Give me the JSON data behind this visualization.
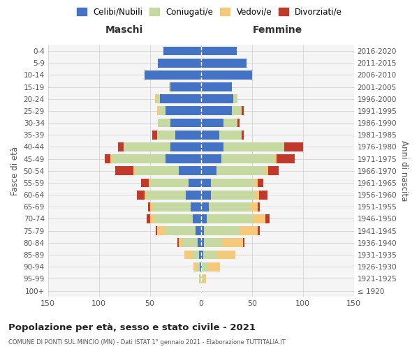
{
  "age_groups": [
    "100+",
    "95-99",
    "90-94",
    "85-89",
    "80-84",
    "75-79",
    "70-74",
    "65-69",
    "60-64",
    "55-59",
    "50-54",
    "45-49",
    "40-44",
    "35-39",
    "30-34",
    "25-29",
    "20-24",
    "15-19",
    "10-14",
    "5-9",
    "0-4"
  ],
  "birth_years": [
    "≤ 1920",
    "1921-1925",
    "1926-1930",
    "1931-1935",
    "1936-1940",
    "1941-1945",
    "1946-1950",
    "1951-1955",
    "1956-1960",
    "1961-1965",
    "1966-1970",
    "1971-1975",
    "1976-1980",
    "1981-1985",
    "1986-1990",
    "1991-1995",
    "1996-2000",
    "2001-2005",
    "2006-2010",
    "2011-2015",
    "2016-2020"
  ],
  "colors": {
    "celibi": "#4472c4",
    "coniugati": "#c5d9a0",
    "vedovi": "#f5c97a",
    "divorziati": "#c0392b"
  },
  "maschi": {
    "celibi": [
      0,
      0,
      1,
      2,
      3,
      5,
      8,
      10,
      15,
      12,
      22,
      35,
      30,
      25,
      30,
      35,
      40,
      30,
      55,
      42,
      37
    ],
    "coniugati": [
      0,
      1,
      3,
      6,
      15,
      30,
      38,
      37,
      38,
      38,
      42,
      52,
      46,
      18,
      12,
      6,
      3,
      1,
      0,
      0,
      0
    ],
    "vedovi": [
      0,
      1,
      3,
      8,
      4,
      8,
      4,
      3,
      2,
      1,
      2,
      2,
      0,
      0,
      0,
      2,
      2,
      0,
      0,
      0,
      0
    ],
    "divorziati": [
      0,
      0,
      0,
      0,
      1,
      1,
      3,
      2,
      8,
      8,
      18,
      5,
      5,
      5,
      0,
      0,
      0,
      0,
      0,
      0,
      0
    ]
  },
  "femmine": {
    "celibi": [
      0,
      0,
      1,
      2,
      3,
      3,
      6,
      8,
      10,
      10,
      15,
      20,
      22,
      18,
      22,
      30,
      32,
      30,
      50,
      45,
      35
    ],
    "coniugati": [
      0,
      2,
      6,
      14,
      18,
      35,
      45,
      40,
      42,
      42,
      48,
      52,
      60,
      22,
      14,
      10,
      4,
      0,
      0,
      0,
      0
    ],
    "vedovi": [
      1,
      3,
      12,
      18,
      20,
      18,
      12,
      8,
      5,
      4,
      3,
      2,
      0,
      0,
      0,
      0,
      0,
      0,
      0,
      0,
      0
    ],
    "divorziati": [
      0,
      0,
      0,
      0,
      2,
      2,
      4,
      2,
      8,
      5,
      10,
      18,
      18,
      2,
      2,
      2,
      0,
      0,
      0,
      0,
      0
    ]
  },
  "title": "Popolazione per età, sesso e stato civile - 2021",
  "subtitle": "COMUNE DI PONTI SUL MINCIO (MN) - Dati ISTAT 1° gennaio 2021 - Elaborazione TUTTITALIA.IT",
  "xlabel_left": "Maschi",
  "xlabel_right": "Femmine",
  "ylabel_left": "Fasce di età",
  "ylabel_right": "Anni di nascita",
  "xlim": 150,
  "legend_labels": [
    "Celibi/Nubili",
    "Coniugati/e",
    "Vedovi/e",
    "Divorziati/e"
  ],
  "bg_color": "#ffffff",
  "grid_color": "#cccccc"
}
